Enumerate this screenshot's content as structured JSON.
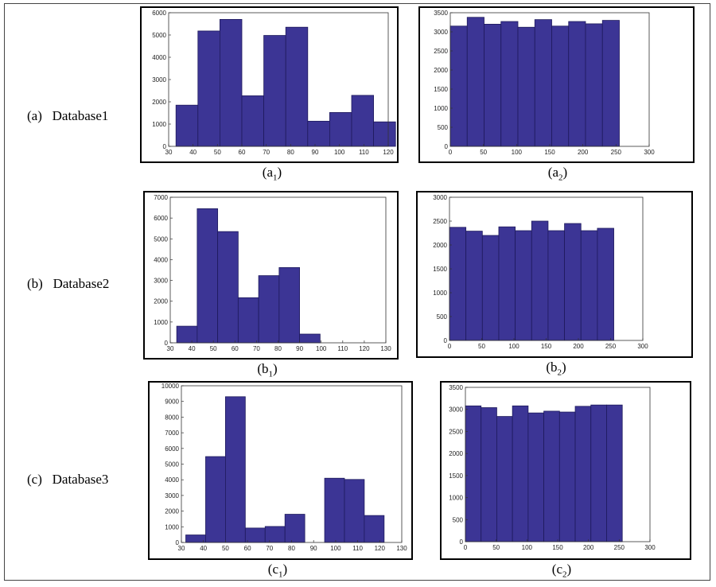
{
  "rows": [
    {
      "label": "(a)   Database1",
      "captions": [
        "a",
        "a"
      ]
    },
    {
      "label": "(b)   Database2",
      "captions": [
        "b",
        "b"
      ]
    },
    {
      "label": "(c)   Database3",
      "captions": [
        "c",
        "c"
      ]
    }
  ],
  "colors": {
    "bar": "#3c3595",
    "bar_edge": "#1e1a5c"
  },
  "chart_data": [
    {
      "id": "a1",
      "type": "bar",
      "caption_letter": "a",
      "caption_sub": "1",
      "xlim": [
        30,
        120
      ],
      "ylim": [
        0,
        6000
      ],
      "xticks": [
        30,
        40,
        50,
        60,
        70,
        80,
        90,
        100,
        110,
        120
      ],
      "yticks": [
        0,
        1000,
        2000,
        3000,
        4000,
        5000,
        6000
      ],
      "bin_starts": [
        33,
        42,
        51,
        60,
        69,
        78,
        87,
        96,
        105,
        114
      ],
      "bin_width": 9,
      "values": [
        1850,
        5180,
        5700,
        2270,
        4980,
        5350,
        1130,
        1520,
        2290,
        1100
      ]
    },
    {
      "id": "a2",
      "type": "bar",
      "caption_letter": "a",
      "caption_sub": "2",
      "xlim": [
        0,
        300
      ],
      "ylim": [
        0,
        3500
      ],
      "xticks": [
        0,
        50,
        100,
        150,
        200,
        250,
        300
      ],
      "yticks": [
        0,
        500,
        1000,
        1500,
        2000,
        2500,
        3000,
        3500
      ],
      "bin_starts": [
        0,
        25.5,
        51,
        76.5,
        102,
        127.5,
        153,
        178.5,
        204,
        229.5
      ],
      "bin_width": 25.5,
      "values": [
        3150,
        3380,
        3200,
        3270,
        3120,
        3320,
        3150,
        3270,
        3210,
        3300
      ]
    },
    {
      "id": "b1",
      "type": "bar",
      "caption_letter": "b",
      "caption_sub": "1",
      "xlim": [
        30,
        130
      ],
      "ylim": [
        0,
        7000
      ],
      "xticks": [
        30,
        40,
        50,
        60,
        70,
        80,
        90,
        100,
        110,
        120,
        130
      ],
      "yticks": [
        0,
        1000,
        2000,
        3000,
        4000,
        5000,
        6000,
        7000
      ],
      "bin_starts": [
        33,
        42.5,
        52,
        61.5,
        71,
        80.5,
        90
      ],
      "bin_width": 9.5,
      "values": [
        800,
        6450,
        5350,
        2170,
        3230,
        3620,
        420
      ]
    },
    {
      "id": "b2",
      "type": "bar",
      "caption_letter": "b",
      "caption_sub": "2",
      "xlim": [
        0,
        300
      ],
      "ylim": [
        0,
        3000
      ],
      "xticks": [
        0,
        50,
        100,
        150,
        200,
        250,
        300
      ],
      "yticks": [
        0,
        500,
        1000,
        1500,
        2000,
        2500,
        3000
      ],
      "bin_starts": [
        0,
        25.5,
        51,
        76.5,
        102,
        127.5,
        153,
        178.5,
        204,
        229.5
      ],
      "bin_width": 25.5,
      "values": [
        2370,
        2290,
        2200,
        2380,
        2300,
        2500,
        2300,
        2450,
        2300,
        2350
      ]
    },
    {
      "id": "c1",
      "type": "bar",
      "caption_letter": "c",
      "caption_sub": "1",
      "xlim": [
        30,
        130
      ],
      "ylim": [
        0,
        10000
      ],
      "xticks": [
        30,
        40,
        50,
        60,
        70,
        80,
        90,
        100,
        110,
        120,
        130
      ],
      "yticks": [
        0,
        1000,
        2000,
        3000,
        4000,
        5000,
        6000,
        7000,
        8000,
        9000,
        10000
      ],
      "bin_starts": [
        32,
        41,
        50,
        59,
        68,
        77,
        86,
        95,
        104,
        113
      ],
      "bin_width": 9,
      "values": [
        480,
        5480,
        9300,
        920,
        1020,
        1800,
        0,
        4100,
        4020,
        1720
      ]
    },
    {
      "id": "c2",
      "type": "bar",
      "caption_letter": "c",
      "caption_sub": "2",
      "xlim": [
        0,
        300
      ],
      "ylim": [
        0,
        3500
      ],
      "xticks": [
        0,
        50,
        100,
        150,
        200,
        250,
        300
      ],
      "yticks": [
        0,
        500,
        1000,
        1500,
        2000,
        2500,
        3000,
        3500
      ],
      "bin_starts": [
        0,
        25.5,
        51,
        76.5,
        102,
        127.5,
        153,
        178.5,
        204,
        229.5
      ],
      "bin_width": 25.5,
      "values": [
        3080,
        3040,
        2840,
        3080,
        2920,
        2960,
        2940,
        3070,
        3100,
        3100
      ]
    }
  ]
}
